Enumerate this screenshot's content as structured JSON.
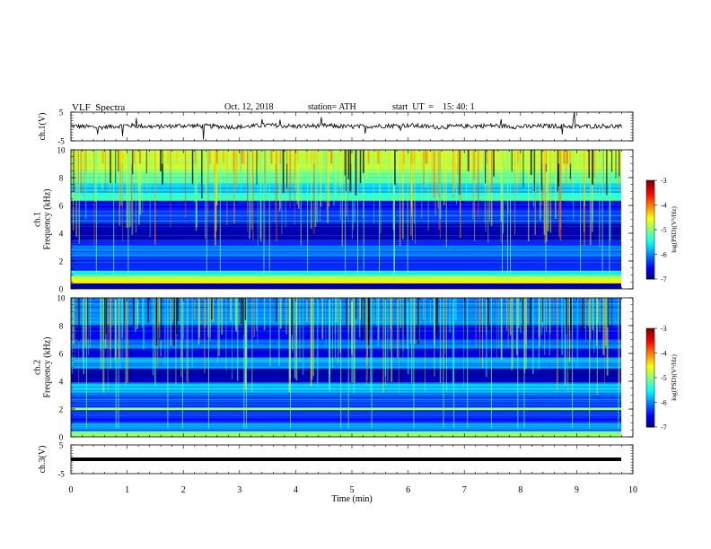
{
  "header": {
    "title": "VLF  Spectra",
    "date": "Oct. 12, 2018",
    "station": "station= ATH",
    "start": "start  UT  =    15: 40: 1"
  },
  "chart_data": [
    {
      "type": "line",
      "panel": "ch1-waveform",
      "ylabel": "ch.1(V)",
      "ylim": [
        -5,
        5
      ],
      "yticks": [
        "5",
        "-5"
      ],
      "x": [
        0,
        0.5,
        1,
        1.5,
        2,
        2.5,
        3,
        3.5,
        4,
        4.5,
        5,
        5.5,
        6,
        6.5,
        7,
        7.5,
        8,
        8.5,
        9,
        9.5,
        9.8
      ],
      "values": [
        0.2,
        -0.3,
        0.4,
        -0.1,
        0.3,
        0.1,
        -0.2,
        0.5,
        0.0,
        0.3,
        -0.1,
        0.2,
        0.4,
        -0.2,
        0.1,
        0.3,
        -0.1,
        0.2,
        0.0,
        0.2,
        -0.1
      ],
      "color": "#000000"
    },
    {
      "type": "heatmap",
      "panel": "ch1-spectrogram",
      "ylabel": "ch.1\nFrequency  (kHz)",
      "ylim": [
        0,
        10
      ],
      "yticks": [
        "0",
        "2",
        "4",
        "6",
        "8",
        "10"
      ],
      "xlim": [
        0,
        9.8
      ],
      "bands": [
        {
          "f0": 0.0,
          "f1": 0.4,
          "level": -7.0
        },
        {
          "f0": 0.4,
          "f1": 0.9,
          "level": -4.6
        },
        {
          "f0": 0.9,
          "f1": 1.3,
          "level": -5.4
        },
        {
          "f0": 1.3,
          "f1": 2.3,
          "level": -6.3
        },
        {
          "f0": 2.3,
          "f1": 3.1,
          "level": -6.0
        },
        {
          "f0": 3.1,
          "f1": 3.5,
          "level": -6.3
        },
        {
          "f0": 3.5,
          "f1": 4.7,
          "level": -6.8
        },
        {
          "f0": 4.7,
          "f1": 5.6,
          "level": -6.2
        },
        {
          "f0": 5.6,
          "f1": 6.3,
          "level": -6.5
        },
        {
          "f0": 6.3,
          "f1": 6.9,
          "level": -5.3
        },
        {
          "f0": 6.9,
          "f1": 7.6,
          "level": -5.7
        },
        {
          "f0": 7.6,
          "f1": 8.4,
          "level": -5.1
        },
        {
          "f0": 8.4,
          "f1": 10.0,
          "level": -4.8
        }
      ],
      "colorbar": {
        "label": "log(PSD)(V²/Hz)",
        "range": [
          -7,
          -3
        ],
        "ticks": [
          "-3",
          "-4",
          "-5",
          "-6",
          "-7"
        ]
      }
    },
    {
      "type": "heatmap",
      "panel": "ch2-spectrogram",
      "ylabel": "ch.2\nFrequency  (kHz)",
      "ylim": [
        0,
        10
      ],
      "yticks": [
        "0",
        "2",
        "4",
        "6",
        "8",
        "10"
      ],
      "xlim": [
        0,
        9.8
      ],
      "bands": [
        {
          "f0": 0.0,
          "f1": 0.4,
          "level": -4.9
        },
        {
          "f0": 0.4,
          "f1": 1.0,
          "level": -6.0
        },
        {
          "f0": 1.0,
          "f1": 1.9,
          "level": -6.4
        },
        {
          "f0": 1.9,
          "f1": 2.1,
          "level": -4.9
        },
        {
          "f0": 2.1,
          "f1": 3.2,
          "level": -6.2
        },
        {
          "f0": 3.2,
          "f1": 3.9,
          "level": -5.7
        },
        {
          "f0": 3.9,
          "f1": 4.9,
          "level": -6.8
        },
        {
          "f0": 4.9,
          "f1": 5.7,
          "level": -5.9
        },
        {
          "f0": 5.7,
          "f1": 6.3,
          "level": -6.6
        },
        {
          "f0": 6.3,
          "f1": 7.0,
          "level": -6.1
        },
        {
          "f0": 7.0,
          "f1": 8.0,
          "level": -6.5
        },
        {
          "f0": 8.0,
          "f1": 10.0,
          "level": -6.0
        }
      ],
      "colorbar": {
        "label": "log(PSD)(V²/Hz)",
        "range": [
          -7,
          -3
        ],
        "ticks": [
          "-3",
          "-4",
          "-5",
          "-6",
          "-7"
        ]
      }
    },
    {
      "type": "line",
      "panel": "ch3-waveform",
      "ylabel": "ch.3(V)",
      "ylim": [
        -5,
        5
      ],
      "yticks": [
        "5",
        "-5"
      ],
      "x": [
        0,
        9.8
      ],
      "values": [
        0.0,
        0.0
      ],
      "color": "#000000"
    }
  ],
  "xaxis": {
    "label": "Time  (min)",
    "ticks": [
      "0",
      "1",
      "2",
      "3",
      "4",
      "5",
      "6",
      "7",
      "8",
      "9",
      "10"
    ],
    "xlim": [
      0,
      10
    ]
  }
}
